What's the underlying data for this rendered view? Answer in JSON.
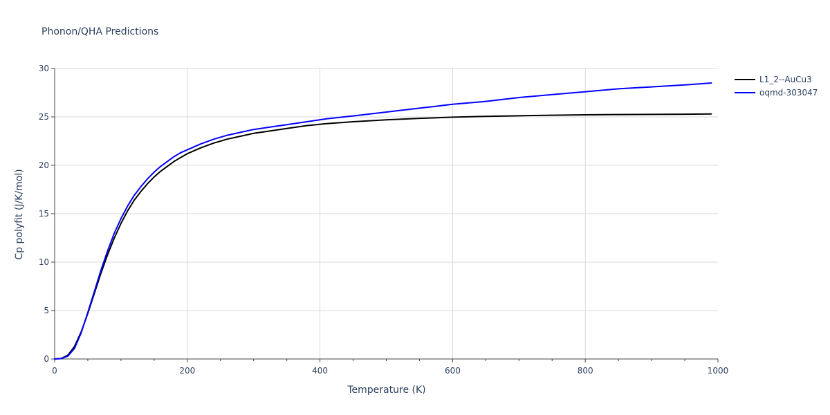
{
  "chart_data": {
    "type": "line",
    "title": "Phonon/QHA Predictions",
    "xlabel": "Temperature (K)",
    "ylabel": "Cp polyfit (J/K/mol)",
    "xlim": [
      0,
      1000
    ],
    "ylim": [
      0,
      30
    ],
    "x_ticks": [
      0,
      200,
      400,
      600,
      800,
      1000
    ],
    "y_ticks": [
      0,
      5,
      10,
      15,
      20,
      25,
      30
    ],
    "x_minor_ticks": [
      50,
      100,
      150,
      250,
      300,
      350,
      450,
      500,
      550,
      650,
      700,
      750,
      850,
      900,
      950
    ],
    "grid": true,
    "legend_position": "top-right",
    "series": [
      {
        "name": "L1_2--AuCu3",
        "color": "#000000",
        "x": [
          0,
          10,
          20,
          30,
          40,
          50,
          60,
          70,
          80,
          90,
          100,
          110,
          120,
          130,
          140,
          150,
          160,
          170,
          180,
          190,
          200,
          220,
          240,
          260,
          280,
          300,
          320,
          350,
          380,
          410,
          450,
          500,
          550,
          600,
          650,
          700,
          750,
          800,
          850,
          900,
          950,
          990
        ],
        "y": [
          0,
          0.05,
          0.4,
          1.3,
          2.8,
          4.7,
          6.8,
          8.9,
          10.8,
          12.5,
          14.0,
          15.3,
          16.4,
          17.3,
          18.1,
          18.8,
          19.4,
          19.9,
          20.4,
          20.8,
          21.2,
          21.8,
          22.3,
          22.7,
          23.0,
          23.3,
          23.5,
          23.8,
          24.1,
          24.3,
          24.5,
          24.7,
          24.85,
          24.97,
          25.05,
          25.12,
          25.17,
          25.21,
          25.24,
          25.26,
          25.28,
          25.3
        ]
      },
      {
        "name": "oqmd-303047",
        "color": "#0000ff",
        "x": [
          0,
          10,
          20,
          30,
          40,
          50,
          60,
          70,
          80,
          90,
          100,
          110,
          120,
          130,
          140,
          150,
          160,
          170,
          180,
          190,
          200,
          220,
          240,
          260,
          280,
          300,
          320,
          350,
          380,
          410,
          450,
          500,
          550,
          600,
          650,
          700,
          750,
          800,
          850,
          900,
          950,
          990
        ],
        "y": [
          0,
          0.04,
          0.3,
          1.1,
          2.7,
          4.8,
          7.0,
          9.2,
          11.2,
          13.0,
          14.5,
          15.8,
          16.9,
          17.8,
          18.6,
          19.3,
          19.9,
          20.4,
          20.9,
          21.3,
          21.6,
          22.2,
          22.7,
          23.1,
          23.4,
          23.7,
          23.9,
          24.2,
          24.5,
          24.8,
          25.1,
          25.5,
          25.9,
          26.3,
          26.6,
          27.0,
          27.3,
          27.6,
          27.9,
          28.1,
          28.3,
          28.5
        ]
      }
    ]
  }
}
